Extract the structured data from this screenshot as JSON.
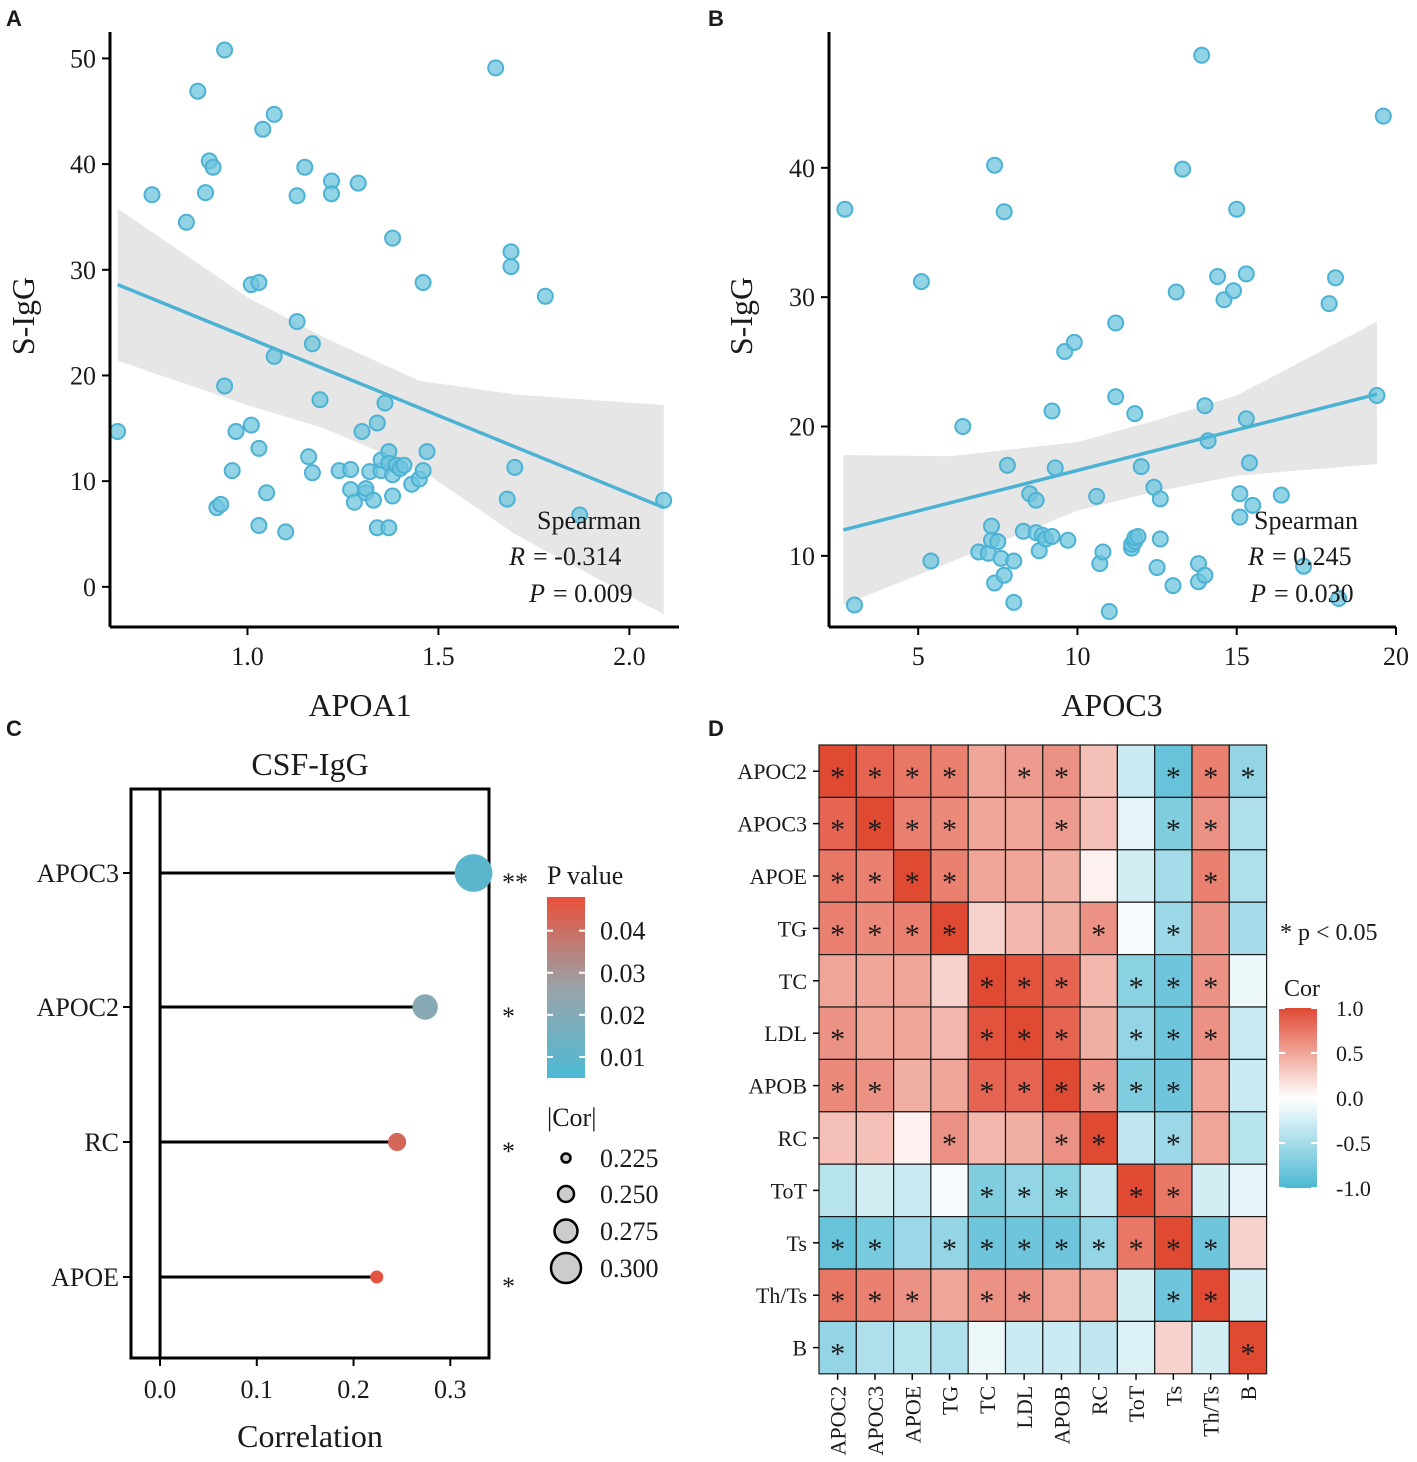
{
  "colors": {
    "point": "#6fc4de",
    "point_stroke": "#4cb2d4",
    "fit_line": "#4cb2d4",
    "ci_band": "#e6e6e6",
    "heat_low": "#4bb8d3",
    "heat_mid": "#ffffff",
    "heat_high": "#e04a33",
    "p_low": "#4dbad6",
    "p_mid": "#9aa3a8",
    "p_high": "#e8503a"
  },
  "chart_data": [
    {
      "id": "A",
      "panel_label": "A",
      "type": "scatter",
      "title": "",
      "xlabel": "APOA1",
      "ylabel": "S-IgG",
      "xlim": [
        0.64,
        2.13
      ],
      "ylim": [
        -3.8,
        52.5
      ],
      "xticks": [
        1.0,
        1.5,
        2.0
      ],
      "xtick_labels": [
        "1.0",
        "1.5",
        "2.0"
      ],
      "yticks": [
        0,
        10,
        20,
        30,
        40,
        50
      ],
      "ytick_labels": [
        "0",
        "10",
        "20",
        "30",
        "40",
        "50"
      ],
      "fit": {
        "x": [
          0.66,
          2.09
        ],
        "y": [
          28.6,
          7.5
        ]
      },
      "ci": {
        "x": [
          0.66,
          1.0,
          1.2,
          1.45,
          1.7,
          2.09
        ],
        "upper": [
          35.8,
          27.4,
          23.6,
          19.5,
          18.2,
          17.2
        ],
        "lower": [
          21.4,
          17.2,
          15.0,
          11.2,
          5.0,
          -2.6
        ]
      },
      "points": [
        [
          0.66,
          14.7
        ],
        [
          0.75,
          37.1
        ],
        [
          0.84,
          34.5
        ],
        [
          0.87,
          46.9
        ],
        [
          0.89,
          37.3
        ],
        [
          0.9,
          40.3
        ],
        [
          0.91,
          39.7
        ],
        [
          0.92,
          7.5
        ],
        [
          0.93,
          7.8
        ],
        [
          0.94,
          19.0
        ],
        [
          0.94,
          50.8
        ],
        [
          0.96,
          11.0
        ],
        [
          0.97,
          14.7
        ],
        [
          1.01,
          15.3
        ],
        [
          1.01,
          28.6
        ],
        [
          1.03,
          28.8
        ],
        [
          1.03,
          13.1
        ],
        [
          1.03,
          5.8
        ],
        [
          1.04,
          43.3
        ],
        [
          1.05,
          8.9
        ],
        [
          1.07,
          44.7
        ],
        [
          1.07,
          21.8
        ],
        [
          1.1,
          5.2
        ],
        [
          1.13,
          37.0
        ],
        [
          1.13,
          25.1
        ],
        [
          1.15,
          39.7
        ],
        [
          1.16,
          12.3
        ],
        [
          1.17,
          10.8
        ],
        [
          1.17,
          23.0
        ],
        [
          1.19,
          17.7
        ],
        [
          1.22,
          38.4
        ],
        [
          1.22,
          37.2
        ],
        [
          1.24,
          11.0
        ],
        [
          1.27,
          11.1
        ],
        [
          1.27,
          9.2
        ],
        [
          1.28,
          8.0
        ],
        [
          1.29,
          38.2
        ],
        [
          1.3,
          14.7
        ],
        [
          1.31,
          8.9
        ],
        [
          1.31,
          9.3
        ],
        [
          1.32,
          10.9
        ],
        [
          1.33,
          8.2
        ],
        [
          1.34,
          15.5
        ],
        [
          1.34,
          5.6
        ],
        [
          1.35,
          11.0
        ],
        [
          1.35,
          12.0
        ],
        [
          1.36,
          17.4
        ],
        [
          1.37,
          5.6
        ],
        [
          1.37,
          12.8
        ],
        [
          1.37,
          11.7
        ],
        [
          1.38,
          33.0
        ],
        [
          1.38,
          8.6
        ],
        [
          1.38,
          10.6
        ],
        [
          1.39,
          11.5
        ],
        [
          1.4,
          11.2
        ],
        [
          1.41,
          11.5
        ],
        [
          1.43,
          9.7
        ],
        [
          1.45,
          10.2
        ],
        [
          1.46,
          11.0
        ],
        [
          1.46,
          28.8
        ],
        [
          1.47,
          12.8
        ],
        [
          1.65,
          49.1
        ],
        [
          1.68,
          8.3
        ],
        [
          1.69,
          31.7
        ],
        [
          1.69,
          30.3
        ],
        [
          1.7,
          11.3
        ],
        [
          1.78,
          27.5
        ],
        [
          1.87,
          6.8
        ],
        [
          2.09,
          8.2
        ]
      ],
      "stats": {
        "method": "Spearman",
        "r_label": "R",
        "r_value": "= -0.314",
        "p_label": "P",
        "p_value": "= 0.009"
      }
    },
    {
      "id": "B",
      "panel_label": "B",
      "type": "scatter",
      "title": "",
      "xlabel": "APOC3",
      "ylabel": "S-IgG",
      "xlim": [
        2.2,
        20.0
      ],
      "ylim": [
        4.5,
        50.5
      ],
      "xticks": [
        5,
        10,
        15,
        20
      ],
      "xtick_labels": [
        "5",
        "10",
        "15",
        "20"
      ],
      "yticks": [
        10,
        20,
        30,
        40
      ],
      "ytick_labels": [
        "10",
        "20",
        "30",
        "40"
      ],
      "fit": {
        "x": [
          2.65,
          19.4
        ],
        "y": [
          12.0,
          22.5
        ]
      },
      "ci": {
        "x": [
          2.65,
          6.0,
          10.0,
          12.5,
          15.0,
          19.4
        ],
        "upper": [
          17.8,
          17.7,
          18.8,
          20.5,
          22.4,
          28.1
        ],
        "lower": [
          6.2,
          9.5,
          13.5,
          15.0,
          16.2,
          17.1
        ]
      },
      "points": [
        [
          2.7,
          36.8
        ],
        [
          3.0,
          6.2
        ],
        [
          5.1,
          31.2
        ],
        [
          5.4,
          9.6
        ],
        [
          6.4,
          20.0
        ],
        [
          6.9,
          10.3
        ],
        [
          7.2,
          10.2
        ],
        [
          7.3,
          11.2
        ],
        [
          7.3,
          12.3
        ],
        [
          7.4,
          7.9
        ],
        [
          7.4,
          40.2
        ],
        [
          7.5,
          11.1
        ],
        [
          7.6,
          9.8
        ],
        [
          7.7,
          8.5
        ],
        [
          7.7,
          36.6
        ],
        [
          7.8,
          17.0
        ],
        [
          8.0,
          9.6
        ],
        [
          8.0,
          6.4
        ],
        [
          8.3,
          11.9
        ],
        [
          8.5,
          14.8
        ],
        [
          8.7,
          11.8
        ],
        [
          8.7,
          14.3
        ],
        [
          8.8,
          10.4
        ],
        [
          8.9,
          11.6
        ],
        [
          9.0,
          11.3
        ],
        [
          9.2,
          21.2
        ],
        [
          9.2,
          11.5
        ],
        [
          9.3,
          16.8
        ],
        [
          9.6,
          25.8
        ],
        [
          9.7,
          11.2
        ],
        [
          9.9,
          26.5
        ],
        [
          10.6,
          14.6
        ],
        [
          10.7,
          9.4
        ],
        [
          10.8,
          10.3
        ],
        [
          11.0,
          5.7
        ],
        [
          11.2,
          22.3
        ],
        [
          11.2,
          28.0
        ],
        [
          11.7,
          10.6
        ],
        [
          11.7,
          10.9
        ],
        [
          11.8,
          11.1
        ],
        [
          11.8,
          11.4
        ],
        [
          11.8,
          21.0
        ],
        [
          11.9,
          11.5
        ],
        [
          12.0,
          16.9
        ],
        [
          12.4,
          15.3
        ],
        [
          12.5,
          9.1
        ],
        [
          12.6,
          11.3
        ],
        [
          12.6,
          14.4
        ],
        [
          13.0,
          7.7
        ],
        [
          13.1,
          30.4
        ],
        [
          13.3,
          39.9
        ],
        [
          13.8,
          9.4
        ],
        [
          13.8,
          8.0
        ],
        [
          13.9,
          48.7
        ],
        [
          14.0,
          8.5
        ],
        [
          14.0,
          21.6
        ],
        [
          14.1,
          18.9
        ],
        [
          14.4,
          31.6
        ],
        [
          14.6,
          29.8
        ],
        [
          14.9,
          30.5
        ],
        [
          15.0,
          36.8
        ],
        [
          15.1,
          14.8
        ],
        [
          15.1,
          13.0
        ],
        [
          15.3,
          31.8
        ],
        [
          15.3,
          20.6
        ],
        [
          15.4,
          17.2
        ],
        [
          15.5,
          13.9
        ],
        [
          16.4,
          14.7
        ],
        [
          17.1,
          9.2
        ],
        [
          17.9,
          29.5
        ],
        [
          18.1,
          31.5
        ],
        [
          18.2,
          6.7
        ],
        [
          19.4,
          22.4
        ],
        [
          19.6,
          44.0
        ]
      ],
      "stats": {
        "method": "Spearman",
        "r_label": "R",
        "r_value": "= 0.245",
        "p_label": "P",
        "p_value": "= 0.030"
      }
    },
    {
      "id": "C",
      "panel_label": "C",
      "type": "lollipop",
      "title": "CSF-IgG",
      "xlabel": "Correlation",
      "ylabel": "",
      "xlim": [
        -0.03,
        0.34
      ],
      "xticks": [
        0.0,
        0.1,
        0.2,
        0.3
      ],
      "xtick_labels": [
        "0.0",
        "0.1",
        "0.2",
        "0.3"
      ],
      "categories": [
        "APOC3",
        "APOC2",
        "RC",
        "APOE"
      ],
      "values": [
        0.324,
        0.274,
        0.245,
        0.224
      ],
      "p_values": [
        0.009,
        0.021,
        0.042,
        0.047
      ],
      "significance": [
        "**",
        "*",
        "*",
        "*"
      ],
      "legend_p": {
        "title": "P value",
        "ticks": [
          "0.04",
          "0.03",
          "0.02",
          "0.01"
        ],
        "tick_values": [
          0.04,
          0.03,
          0.02,
          0.01
        ],
        "range": [
          0.005,
          0.048
        ]
      },
      "legend_size": {
        "title": "|Cor|",
        "labels": [
          "0.225",
          "0.250",
          "0.275",
          "0.300"
        ],
        "values": [
          0.225,
          0.25,
          0.275,
          0.3
        ]
      }
    },
    {
      "id": "D",
      "panel_label": "D",
      "type": "heatmap",
      "title": "",
      "rows": [
        "APOC2",
        "APOC3",
        "APOE",
        "TG",
        "TC",
        "LDL",
        "APOB",
        "RC",
        "ToT",
        "Ts",
        "Th/Ts",
        "B"
      ],
      "cols": [
        "APOC2",
        "APOC3",
        "APOE",
        "TG",
        "TC",
        "LDL",
        "APOB",
        "RC",
        "ToT",
        "Ts",
        "Th/Ts",
        "B"
      ],
      "values": [
        [
          1.0,
          0.85,
          0.75,
          0.7,
          0.5,
          0.55,
          0.6,
          0.35,
          -0.3,
          -0.85,
          0.7,
          -0.6
        ],
        [
          0.85,
          1.0,
          0.7,
          0.65,
          0.5,
          0.5,
          0.55,
          0.35,
          -0.15,
          -0.7,
          0.6,
          -0.45
        ],
        [
          0.75,
          0.7,
          1.0,
          0.7,
          0.5,
          0.5,
          0.45,
          0.08,
          -0.25,
          -0.5,
          0.7,
          -0.45
        ],
        [
          0.7,
          0.65,
          0.7,
          1.0,
          0.25,
          0.4,
          0.45,
          0.6,
          -0.05,
          -0.55,
          0.6,
          -0.5
        ],
        [
          0.5,
          0.5,
          0.5,
          0.25,
          1.0,
          0.95,
          0.85,
          0.4,
          -0.65,
          -0.8,
          0.6,
          -0.1
        ],
        [
          0.6,
          0.5,
          0.5,
          0.4,
          0.95,
          1.0,
          0.85,
          0.45,
          -0.6,
          -0.8,
          0.6,
          -0.3
        ],
        [
          0.65,
          0.6,
          0.45,
          0.5,
          0.85,
          0.85,
          1.0,
          0.6,
          -0.7,
          -0.8,
          0.5,
          -0.3
        ],
        [
          0.35,
          0.35,
          0.08,
          0.6,
          0.4,
          0.45,
          0.6,
          1.0,
          -0.35,
          -0.55,
          0.5,
          -0.4
        ],
        [
          -0.4,
          -0.25,
          -0.3,
          -0.05,
          -0.7,
          -0.6,
          -0.65,
          -0.35,
          1.0,
          0.75,
          -0.25,
          -0.15
        ],
        [
          -0.85,
          -0.75,
          -0.55,
          -0.6,
          -0.8,
          -0.8,
          -0.8,
          -0.6,
          0.75,
          1.0,
          -0.8,
          0.25
        ],
        [
          0.75,
          0.7,
          0.6,
          0.5,
          0.6,
          0.6,
          0.5,
          0.5,
          -0.25,
          -0.8,
          1.0,
          -0.25
        ],
        [
          -0.6,
          -0.45,
          -0.4,
          -0.45,
          -0.1,
          -0.3,
          -0.3,
          -0.35,
          -0.2,
          0.25,
          -0.25,
          1.0
        ]
      ],
      "significant": [
        [
          1,
          1,
          1,
          1,
          0,
          1,
          1,
          0,
          0,
          1,
          1,
          1
        ],
        [
          1,
          1,
          1,
          1,
          0,
          0,
          1,
          0,
          0,
          1,
          1,
          0
        ],
        [
          1,
          1,
          1,
          1,
          0,
          0,
          0,
          0,
          0,
          0,
          1,
          0
        ],
        [
          1,
          1,
          1,
          1,
          0,
          0,
          0,
          1,
          0,
          1,
          0,
          0
        ],
        [
          0,
          0,
          0,
          0,
          1,
          1,
          1,
          0,
          1,
          1,
          1,
          0
        ],
        [
          1,
          0,
          0,
          0,
          1,
          1,
          1,
          0,
          1,
          1,
          1,
          0
        ],
        [
          1,
          1,
          0,
          0,
          1,
          1,
          1,
          1,
          1,
          1,
          0,
          0
        ],
        [
          0,
          0,
          0,
          1,
          0,
          0,
          1,
          1,
          0,
          1,
          0,
          0
        ],
        [
          0,
          0,
          0,
          0,
          1,
          1,
          1,
          0,
          1,
          1,
          0,
          0
        ],
        [
          1,
          1,
          0,
          1,
          1,
          1,
          1,
          1,
          1,
          1,
          1,
          0
        ],
        [
          1,
          1,
          1,
          0,
          1,
          1,
          0,
          0,
          0,
          1,
          1,
          0
        ],
        [
          1,
          0,
          0,
          0,
          0,
          0,
          0,
          0,
          0,
          0,
          0,
          1
        ]
      ],
      "significance_note": "* p < 0.05",
      "legend": {
        "title": "Cor",
        "ticks": [
          "1.0",
          "0.5",
          "0.0",
          "-0.5",
          "-1.0"
        ],
        "tick_values": [
          1.0,
          0.5,
          0.0,
          -0.5,
          -1.0
        ]
      }
    }
  ]
}
